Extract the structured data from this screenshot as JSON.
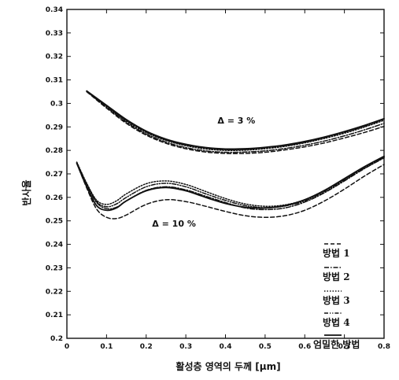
{
  "chart_data": {
    "type": "line",
    "title": "",
    "xlabel": "활성층 영역의 두께 [μm]",
    "ylabel": "반사율",
    "xlim": [
      0,
      0.8
    ],
    "ylim": [
      0.2,
      0.34
    ],
    "x_ticks": [
      "0",
      "0.1",
      "0.2",
      "0.3",
      "0.4",
      "0.5",
      "0.6",
      "0.7",
      "0.8"
    ],
    "y_ticks": [
      "0.2",
      "0.21",
      "0.22",
      "0.23",
      "0.24",
      "0.25",
      "0.26",
      "0.27",
      "0.28",
      "0.29",
      "0.3",
      "0.31",
      "0.32",
      "0.33",
      "0.34"
    ],
    "grid": false,
    "legend_position": "bottom-right",
    "annotations": [
      {
        "text": "Δ = 3 %",
        "x": 0.38,
        "y": 0.2915
      },
      {
        "text": "Δ = 10 %",
        "x": 0.215,
        "y": 0.2475
      }
    ],
    "series": [
      {
        "name": "방법 1",
        "group": "Δ = 3 %",
        "style": "dashed",
        "x": [
          0.05,
          0.1,
          0.15,
          0.2,
          0.25,
          0.3,
          0.35,
          0.4,
          0.45,
          0.5,
          0.55,
          0.6,
          0.65,
          0.7,
          0.75,
          0.8
        ],
        "y": [
          0.305,
          0.298,
          0.2915,
          0.2865,
          0.283,
          0.2807,
          0.2793,
          0.2787,
          0.2787,
          0.2792,
          0.2802,
          0.2815,
          0.2832,
          0.2853,
          0.2876,
          0.2902
        ]
      },
      {
        "name": "방법 2",
        "group": "Δ = 3 %",
        "style": "dash-dot",
        "x": [
          0.05,
          0.1,
          0.15,
          0.2,
          0.25,
          0.3,
          0.35,
          0.4,
          0.45,
          0.5,
          0.55,
          0.6,
          0.65,
          0.7,
          0.75,
          0.8
        ],
        "y": [
          0.305,
          0.2984,
          0.292,
          0.287,
          0.2835,
          0.2812,
          0.2798,
          0.2792,
          0.2793,
          0.2798,
          0.2808,
          0.2822,
          0.284,
          0.2862,
          0.2887,
          0.2915
        ]
      },
      {
        "name": "방법 3",
        "group": "Δ = 3 %",
        "style": "dotted",
        "x": [
          0.05,
          0.1,
          0.15,
          0.2,
          0.25,
          0.3,
          0.35,
          0.4,
          0.45,
          0.5,
          0.55,
          0.6,
          0.65,
          0.7,
          0.75,
          0.8
        ],
        "y": [
          0.3052,
          0.2988,
          0.2925,
          0.2876,
          0.2842,
          0.282,
          0.2806,
          0.28,
          0.2801,
          0.2807,
          0.2817,
          0.2832,
          0.2851,
          0.2873,
          0.2899,
          0.2928
        ]
      },
      {
        "name": "방법 4",
        "group": "Δ = 3 %",
        "style": "dash-dot-dot",
        "x": [
          0.05,
          0.1,
          0.15,
          0.2,
          0.25,
          0.3,
          0.35,
          0.4,
          0.45,
          0.5,
          0.55,
          0.6,
          0.65,
          0.7,
          0.75,
          0.8
        ],
        "y": [
          0.3052,
          0.299,
          0.2928,
          0.2879,
          0.2845,
          0.2823,
          0.2809,
          0.2803,
          0.2804,
          0.281,
          0.282,
          0.2835,
          0.2854,
          0.2877,
          0.2903,
          0.2932
        ]
      },
      {
        "name": "엄밀한 방법",
        "group": "Δ = 3 %",
        "style": "solid",
        "x": [
          0.05,
          0.1,
          0.15,
          0.2,
          0.25,
          0.3,
          0.35,
          0.4,
          0.45,
          0.5,
          0.55,
          0.6,
          0.65,
          0.7,
          0.75,
          0.8
        ],
        "y": [
          0.3053,
          0.2992,
          0.2931,
          0.2882,
          0.2848,
          0.2826,
          0.2812,
          0.2806,
          0.2807,
          0.2813,
          0.2823,
          0.2838,
          0.2857,
          0.288,
          0.2906,
          0.2935
        ]
      },
      {
        "name": "방법 1",
        "group": "Δ = 10 %",
        "style": "dashed",
        "x": [
          0.025,
          0.05,
          0.075,
          0.1,
          0.125,
          0.15,
          0.2,
          0.25,
          0.3,
          0.35,
          0.4,
          0.45,
          0.5,
          0.55,
          0.6,
          0.65,
          0.7,
          0.75,
          0.8
        ],
        "y": [
          0.2745,
          0.264,
          0.255,
          0.2515,
          0.251,
          0.2525,
          0.257,
          0.259,
          0.2582,
          0.2562,
          0.254,
          0.2522,
          0.2515,
          0.2522,
          0.2545,
          0.2585,
          0.2635,
          0.269,
          0.274
        ]
      },
      {
        "name": "방법 2",
        "group": "Δ = 10 %",
        "style": "dash-dot",
        "x": [
          0.025,
          0.05,
          0.075,
          0.1,
          0.125,
          0.15,
          0.2,
          0.25,
          0.3,
          0.35,
          0.4,
          0.45,
          0.5,
          0.55,
          0.6,
          0.65,
          0.7,
          0.75,
          0.8
        ],
        "y": [
          0.2748,
          0.2655,
          0.2578,
          0.2552,
          0.2558,
          0.2585,
          0.263,
          0.2645,
          0.2632,
          0.2605,
          0.2578,
          0.2555,
          0.2548,
          0.2555,
          0.258,
          0.262,
          0.267,
          0.2722,
          0.2768
        ]
      },
      {
        "name": "방법 3",
        "group": "Δ = 10 %",
        "style": "dotted",
        "x": [
          0.025,
          0.05,
          0.075,
          0.1,
          0.125,
          0.15,
          0.2,
          0.25,
          0.3,
          0.35,
          0.4,
          0.45,
          0.5,
          0.55,
          0.6,
          0.65,
          0.7,
          0.75,
          0.8
        ],
        "y": [
          0.275,
          0.266,
          0.2588,
          0.257,
          0.2585,
          0.2615,
          0.2658,
          0.267,
          0.2655,
          0.2625,
          0.2595,
          0.2572,
          0.2562,
          0.2568,
          0.259,
          0.263,
          0.2678,
          0.2728,
          0.2772
        ]
      },
      {
        "name": "방법 4",
        "group": "Δ = 10 %",
        "style": "dash-dot-dot",
        "x": [
          0.025,
          0.05,
          0.075,
          0.1,
          0.125,
          0.15,
          0.2,
          0.25,
          0.3,
          0.35,
          0.4,
          0.45,
          0.5,
          0.55,
          0.6,
          0.65,
          0.7,
          0.75,
          0.8
        ],
        "y": [
          0.2748,
          0.2658,
          0.2582,
          0.256,
          0.2572,
          0.26,
          0.2645,
          0.266,
          0.2645,
          0.2615,
          0.2587,
          0.2565,
          0.2556,
          0.2563,
          0.2585,
          0.2625,
          0.2674,
          0.2725,
          0.277
        ]
      },
      {
        "name": "엄밀한 방법",
        "group": "Δ = 10 %",
        "style": "solid",
        "x": [
          0.025,
          0.05,
          0.075,
          0.1,
          0.125,
          0.15,
          0.2,
          0.25,
          0.3,
          0.35,
          0.4,
          0.45,
          0.5,
          0.55,
          0.6,
          0.65,
          0.7,
          0.75,
          0.8
        ],
        "y": [
          0.2745,
          0.2645,
          0.2565,
          0.2545,
          0.2555,
          0.2585,
          0.2628,
          0.2642,
          0.2628,
          0.26,
          0.2574,
          0.2558,
          0.2555,
          0.2565,
          0.259,
          0.263,
          0.268,
          0.273,
          0.2775
        ]
      }
    ],
    "legend": [
      {
        "label": "방법 1",
        "style": "dashed"
      },
      {
        "label": "방법 2",
        "style": "dash-dot"
      },
      {
        "label": "방법 3",
        "style": "dotted"
      },
      {
        "label": "방법 4",
        "style": "dash-dot-dot"
      },
      {
        "label": "엄밀한 방법",
        "style": "solid"
      }
    ]
  }
}
